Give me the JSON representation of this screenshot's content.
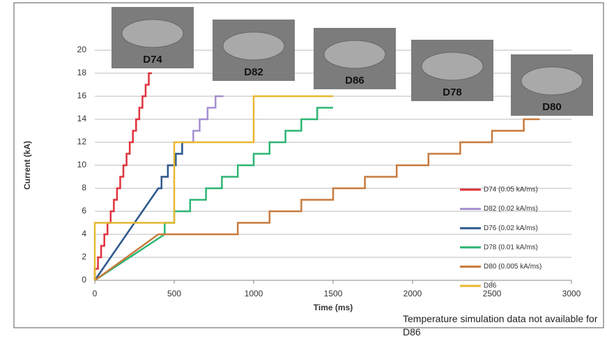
{
  "chart_data": {
    "type": "line",
    "xlabel": "Time (ms)",
    "ylabel": "Current (kA)",
    "note": "Temperature simulation data not available for D86",
    "xlim": [
      0,
      3000
    ],
    "xticks": [
      0,
      500,
      1000,
      1500,
      2000,
      2500,
      3000
    ],
    "ylim": [
      0,
      20
    ],
    "yticks": [
      0,
      2,
      4,
      6,
      8,
      10,
      12,
      14,
      16,
      18,
      20
    ],
    "grid": true,
    "photos": [
      "D74",
      "D82",
      "D86",
      "D78",
      "D80"
    ],
    "series": [
      {
        "name": "D74 (0.05 kA/ms)",
        "color": "#e0323c",
        "x": [
          0,
          0,
          20,
          20,
          40,
          40,
          60,
          60,
          80,
          80,
          100,
          100,
          120,
          120,
          140,
          140,
          160,
          160,
          180,
          180,
          200,
          200,
          220,
          220,
          240,
          240,
          260,
          260,
          280,
          280,
          300,
          300,
          320,
          320,
          340,
          340,
          360
        ],
        "values": [
          0,
          1,
          1,
          2,
          2,
          3,
          3,
          4,
          4,
          5,
          5,
          6,
          6,
          7,
          7,
          8,
          8,
          9,
          9,
          10,
          10,
          11,
          11,
          12,
          12,
          13,
          13,
          14,
          14,
          15,
          15,
          16,
          16,
          17,
          17,
          18,
          18
        ]
      },
      {
        "name": "D82 (0.02 kA/ms)",
        "color": "#a58fd0",
        "x": [
          0,
          400,
          420,
          420,
          460,
          460,
          510,
          510,
          550,
          550,
          620,
          620,
          660,
          660,
          710,
          710,
          760,
          760,
          810
        ],
        "values": [
          0,
          8,
          8,
          9,
          9,
          10,
          10,
          11,
          11,
          12,
          12,
          13,
          13,
          14,
          14,
          15,
          15,
          16,
          16
        ]
      },
      {
        "name": "D76 (0.02 kA/ms)",
        "color": "#2f5b8c",
        "x": [
          0,
          400,
          420,
          420,
          460,
          460,
          510,
          510,
          550,
          550,
          565
        ],
        "values": [
          0,
          8,
          8,
          9,
          9,
          10,
          10,
          11,
          11,
          12,
          12
        ]
      },
      {
        "name": "D78 (0.01 kA/ms)",
        "color": "#2db573",
        "x": [
          0,
          440,
          440,
          500,
          500,
          600,
          600,
          700,
          700,
          800,
          800,
          900,
          900,
          1000,
          1000,
          1100,
          1100,
          1200,
          1200,
          1300,
          1300,
          1400,
          1400,
          1500
        ],
        "values": [
          0,
          4,
          5,
          5,
          6,
          6,
          7,
          7,
          8,
          8,
          9,
          9,
          10,
          10,
          11,
          11,
          12,
          12,
          13,
          13,
          14,
          14,
          15,
          15
        ]
      },
      {
        "name": "D80 (0.005 kA/ms)",
        "color": "#c87a3c",
        "x": [
          0,
          400,
          900,
          900,
          1100,
          1100,
          1300,
          1300,
          1500,
          1500,
          1700,
          1700,
          1900,
          1900,
          2100,
          2100,
          2300,
          2300,
          2500,
          2500,
          2700,
          2700,
          2800
        ],
        "values": [
          0,
          4,
          4,
          5,
          5,
          6,
          6,
          7,
          7,
          8,
          8,
          9,
          9,
          10,
          10,
          11,
          11,
          12,
          12,
          13,
          13,
          14,
          14
        ]
      },
      {
        "name": "D86",
        "color": "#e8b830",
        "x": [
          0,
          0,
          500,
          500,
          1000,
          1000,
          1500
        ],
        "values": [
          0,
          5,
          5,
          12,
          12,
          16,
          16
        ]
      }
    ]
  }
}
